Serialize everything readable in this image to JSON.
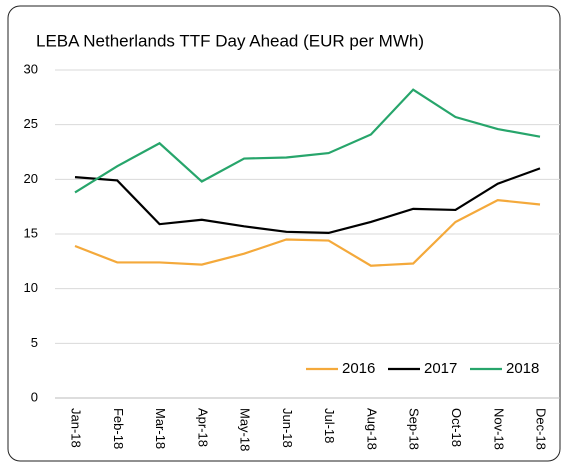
{
  "chart_data": {
    "type": "line",
    "title": "LEBA Netherlands TTF Day Ahead (EUR per MWh)",
    "categories": [
      "Jan-18",
      "Feb-18",
      "Mar-18",
      "Apr-18",
      "May-18",
      "Jun-18",
      "Jul-18",
      "Aug-18",
      "Sep-18",
      "Oct-18",
      "Nov-18",
      "Dec-18"
    ],
    "series": [
      {
        "name": "2016",
        "color": "#f4a93b",
        "values": [
          13.9,
          12.4,
          12.4,
          12.2,
          13.2,
          14.5,
          14.4,
          12.1,
          12.3,
          16.1,
          18.1,
          17.7
        ]
      },
      {
        "name": "2017",
        "color": "#000000",
        "values": [
          20.2,
          19.9,
          15.9,
          16.3,
          15.7,
          15.2,
          15.1,
          16.1,
          17.3,
          17.2,
          19.6,
          21.0
        ]
      },
      {
        "name": "2018",
        "color": "#27a56b",
        "values": [
          18.8,
          21.2,
          23.3,
          19.8,
          21.9,
          22.0,
          22.4,
          24.1,
          28.2,
          25.7,
          24.6,
          23.9
        ]
      }
    ],
    "ylim": [
      0,
      30
    ],
    "yticks": [
      0,
      5,
      10,
      15,
      20,
      25,
      30
    ],
    "grid": true,
    "legend": "lower right"
  }
}
